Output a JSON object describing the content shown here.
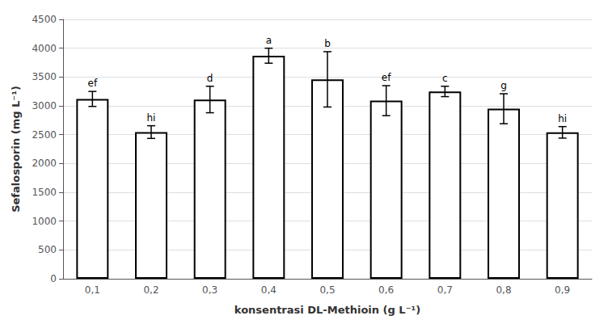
{
  "chart_data": {
    "type": "bar",
    "categories": [
      "0,1",
      "0,2",
      "0,3",
      "0,4",
      "0,5",
      "0,6",
      "0,7",
      "0,8",
      "0,9"
    ],
    "values": [
      3120,
      2545,
      3110,
      3870,
      3460,
      3090,
      3250,
      2950,
      2540
    ],
    "errors": [
      130,
      110,
      230,
      130,
      480,
      260,
      90,
      260,
      100
    ],
    "labels": [
      "ef",
      "hi",
      "d",
      "a",
      "b",
      "ef",
      "c",
      "g",
      "hi"
    ],
    "ylabel": "Sefalosporin (mg L⁻¹)",
    "xlabel": "konsentrasi DL-Methioin (g L⁻¹)",
    "color": "#ffffff",
    "ylim": [
      0,
      4500
    ],
    "yticks": [
      0,
      500,
      1000,
      1500,
      2000,
      2500,
      3000,
      3500,
      4000,
      4500
    ],
    "grid": true
  }
}
